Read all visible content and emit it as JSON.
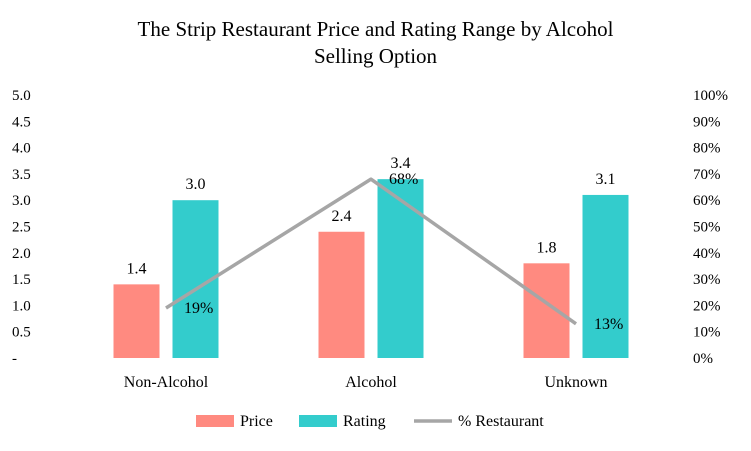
{
  "title_line1": "The Strip Restaurant Price and Rating Range by Alcohol",
  "title_line2": "Selling Option",
  "colors": {
    "price": "#ff8a80",
    "rating": "#33cccc",
    "line": "#a6a6a6"
  },
  "chart_data": {
    "type": "bar",
    "title": "The Strip Restaurant Price and Rating Range by Alcohol Selling Option",
    "categories": [
      "Non-Alcohol",
      "Alcohol",
      "Unknown"
    ],
    "series": [
      {
        "name": "Price",
        "type": "bar",
        "axis": "left",
        "values": [
          1.4,
          2.4,
          1.8
        ],
        "labels": [
          "1.4",
          "2.4",
          "1.8"
        ]
      },
      {
        "name": "Rating",
        "type": "bar",
        "axis": "left",
        "values": [
          3.0,
          3.4,
          3.1
        ],
        "labels": [
          "3.0",
          "3.4",
          "3.1"
        ]
      },
      {
        "name": "% Restaurant",
        "type": "line",
        "axis": "right",
        "values": [
          19,
          68,
          13
        ],
        "labels": [
          "19%",
          "68%",
          "13%"
        ]
      }
    ],
    "y_left": {
      "ylim": [
        0,
        5
      ],
      "ticks": [
        "-",
        "0.5",
        "1.0",
        "1.5",
        "2.0",
        "2.5",
        "3.0",
        "3.5",
        "4.0",
        "4.5",
        "5.0"
      ]
    },
    "y_right": {
      "ylim": [
        0,
        100
      ],
      "ticks": [
        "0%",
        "10%",
        "20%",
        "30%",
        "40%",
        "50%",
        "60%",
        "70%",
        "80%",
        "90%",
        "100%"
      ]
    },
    "legend": [
      "Price",
      "Rating",
      "% Restaurant"
    ],
    "legend_position": "bottom",
    "grid": false
  }
}
